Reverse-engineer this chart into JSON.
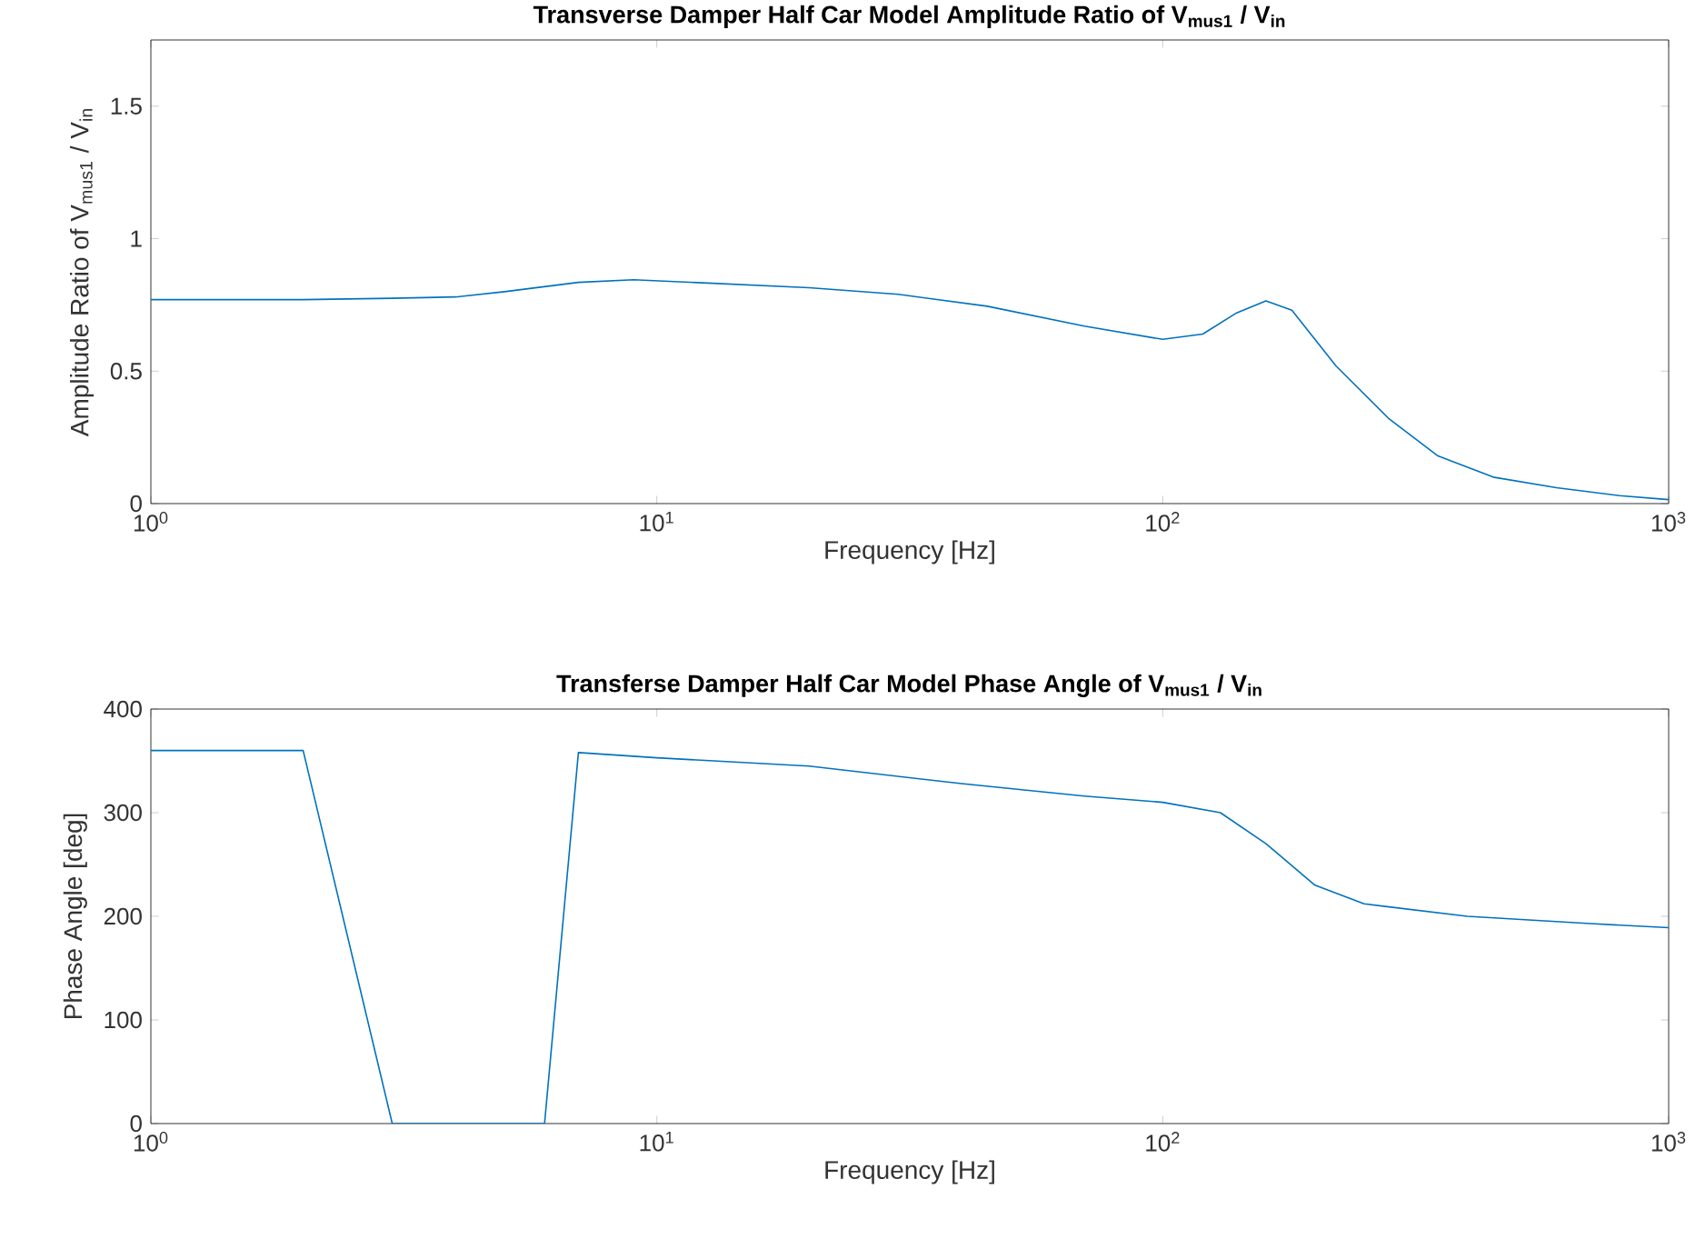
{
  "chart_data": [
    {
      "type": "line",
      "title": "Transverse Damper Half Car Model Amplitude Ratio of V$_{mus1}$ / V$_{in}$",
      "xlabel": "Frequency [Hz]",
      "ylabel": "Amplitude Ratio of V$_{mus1}$ / V$_{in}$",
      "log": "x",
      "xlim": [
        1,
        1000
      ],
      "ylim": [
        0,
        1.75
      ],
      "xticks": [
        {
          "value": 1,
          "label": "10$^{0}$"
        },
        {
          "value": 10,
          "label": "10$^{1}$"
        },
        {
          "value": 100,
          "label": "10$^{2}$"
        },
        {
          "value": 1000,
          "label": "10$^{3}$"
        }
      ],
      "yticks": [
        0,
        0.5,
        1,
        1.5
      ],
      "color": "#0072bd",
      "x": [
        1,
        2,
        3,
        4,
        5,
        7,
        9,
        20,
        30,
        45,
        70,
        100,
        120,
        140,
        160,
        180,
        220,
        280,
        350,
        450,
        600,
        800,
        1000
      ],
      "values": [
        0.77,
        0.77,
        0.775,
        0.78,
        0.8,
        0.835,
        0.845,
        0.815,
        0.79,
        0.745,
        0.67,
        0.62,
        0.64,
        0.72,
        0.765,
        0.73,
        0.52,
        0.32,
        0.18,
        0.1,
        0.06,
        0.03,
        0.015
      ]
    },
    {
      "type": "line",
      "title": "Transferse Damper Half Car Model Phase Angle of V$_{mus1}$ / V$_{in}$",
      "xlabel": "Frequency [Hz]",
      "ylabel": "Phase Angle [deg]",
      "log": "x",
      "xlim": [
        1,
        1000
      ],
      "ylim": [
        0,
        400
      ],
      "xticks": [
        {
          "value": 1,
          "label": "10$^{0}$"
        },
        {
          "value": 10,
          "label": "10$^{1}$"
        },
        {
          "value": 100,
          "label": "10$^{2}$"
        },
        {
          "value": 1000,
          "label": "10$^{3}$"
        }
      ],
      "yticks": [
        0,
        100,
        200,
        300,
        400
      ],
      "color": "#0072bd",
      "x": [
        1,
        2,
        3,
        6,
        7,
        10,
        20,
        40,
        70,
        100,
        130,
        160,
        200,
        250,
        400,
        700,
        1000
      ],
      "values": [
        360,
        360,
        0,
        0,
        358,
        353,
        345,
        328,
        316,
        310,
        300,
        270,
        230,
        212,
        200,
        193,
        189
      ]
    }
  ]
}
